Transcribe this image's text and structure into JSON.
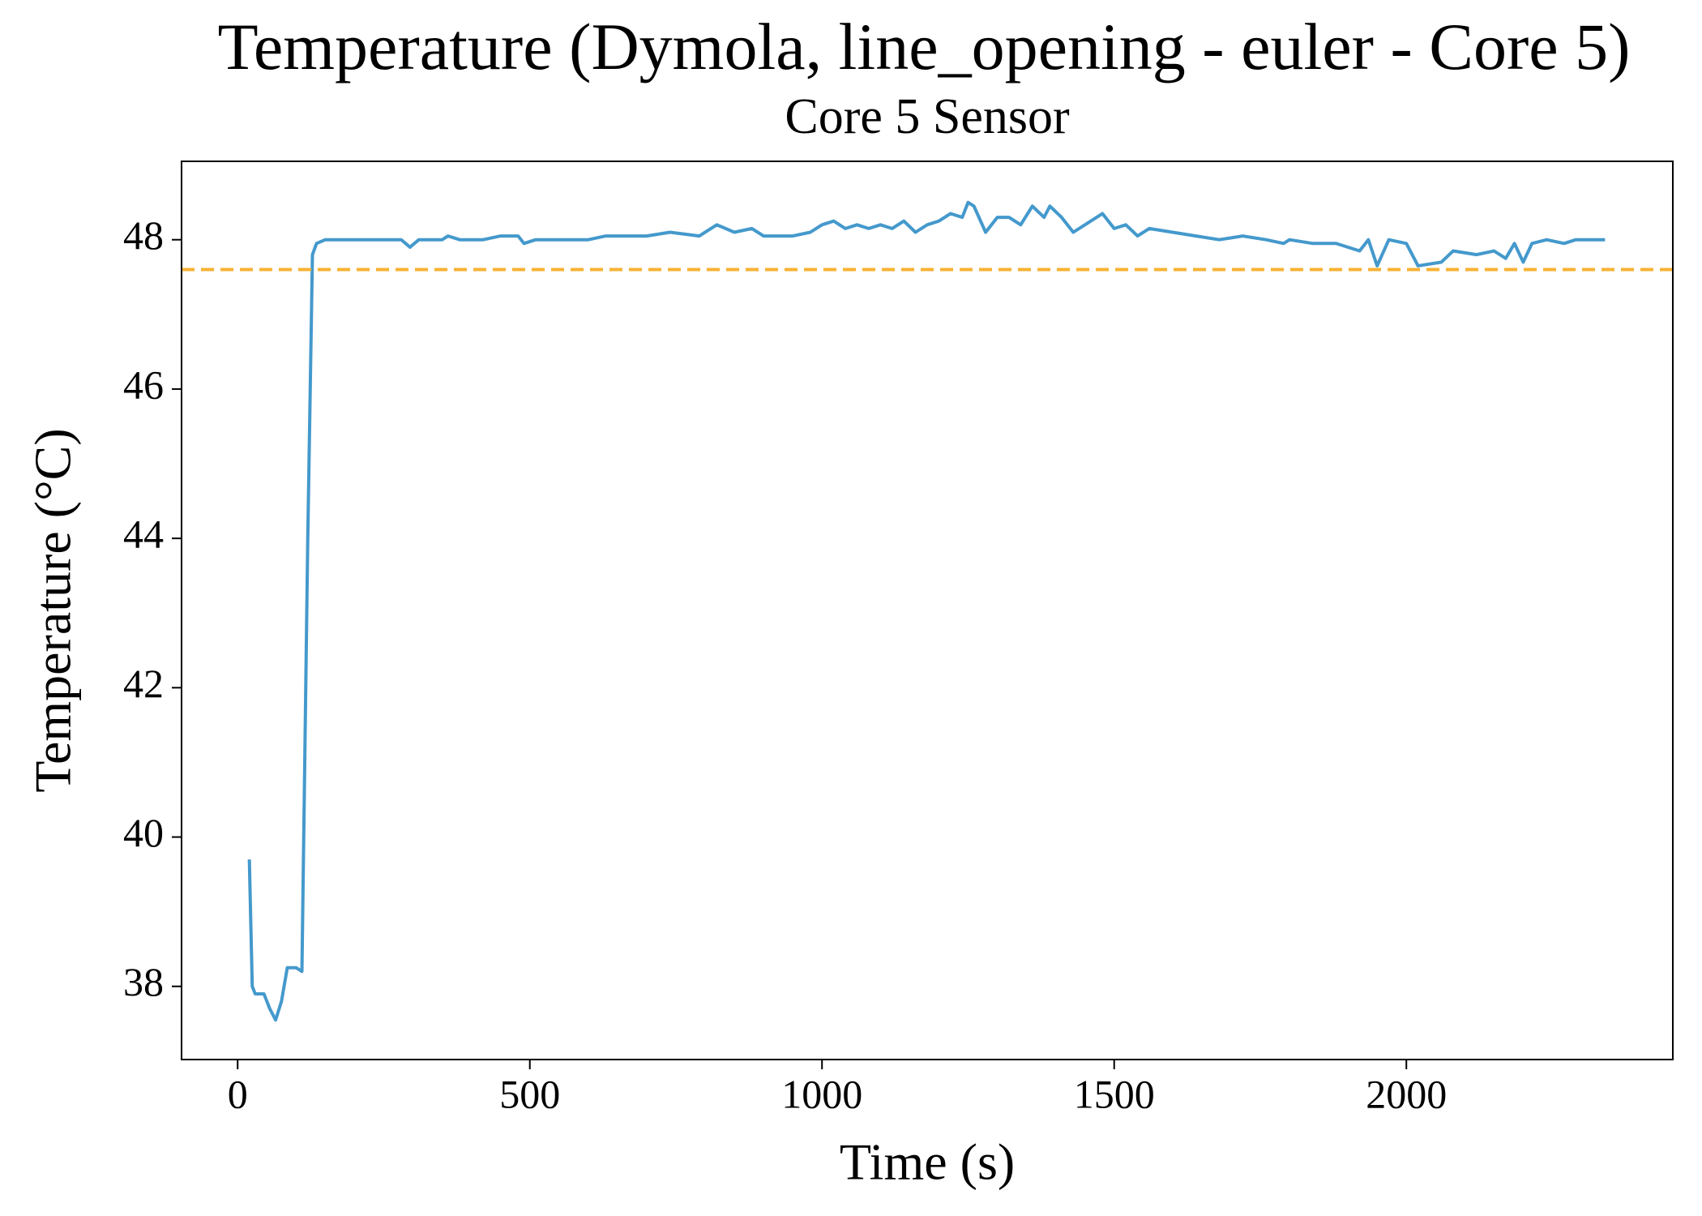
{
  "chart_data": {
    "type": "line",
    "title": "Temperature (Dymola, line_opening - euler - Core 5)",
    "subtitle": "Core 5 Sensor",
    "x_label": "Time (s)",
    "y_label": "Temperature (°C)",
    "x": [
      20,
      25,
      30,
      45,
      55,
      65,
      75,
      85,
      100,
      110,
      120,
      128,
      135,
      150,
      280,
      295,
      310,
      350,
      360,
      380,
      420,
      450,
      480,
      490,
      510,
      600,
      630,
      700,
      740,
      790,
      820,
      850,
      880,
      900,
      950,
      980,
      1000,
      1020,
      1040,
      1060,
      1080,
      1100,
      1120,
      1140,
      1160,
      1180,
      1200,
      1220,
      1240,
      1250,
      1260,
      1280,
      1300,
      1320,
      1340,
      1360,
      1380,
      1390,
      1410,
      1430,
      1460,
      1480,
      1500,
      1520,
      1540,
      1560,
      1600,
      1640,
      1680,
      1720,
      1760,
      1790,
      1800,
      1840,
      1880,
      1920,
      1935,
      1950,
      1970,
      2000,
      2020,
      2060,
      2080,
      2120,
      2150,
      2170,
      2185,
      2200,
      2215,
      2240,
      2270,
      2290,
      2340
    ],
    "values": [
      39.7,
      38.0,
      37.9,
      37.9,
      37.7,
      37.55,
      37.8,
      38.25,
      38.25,
      38.2,
      44,
      47.8,
      47.95,
      48,
      48,
      47.9,
      48,
      48,
      48.05,
      48,
      48,
      48.05,
      48.05,
      47.95,
      48,
      48,
      48.05,
      48.05,
      48.1,
      48.05,
      48.2,
      48.1,
      48.15,
      48.05,
      48.05,
      48.1,
      48.2,
      48.25,
      48.15,
      48.2,
      48.15,
      48.2,
      48.15,
      48.25,
      48.1,
      48.2,
      48.25,
      48.35,
      48.3,
      48.5,
      48.45,
      48.1,
      48.3,
      48.3,
      48.2,
      48.45,
      48.3,
      48.45,
      48.3,
      48.1,
      48.25,
      48.35,
      48.15,
      48.2,
      48.05,
      48.15,
      48.1,
      48.05,
      48,
      48.05,
      48,
      47.95,
      48,
      47.95,
      47.95,
      47.85,
      48.0,
      47.65,
      48.0,
      47.95,
      47.65,
      47.7,
      47.85,
      47.8,
      47.85,
      47.75,
      47.95,
      47.7,
      47.95,
      48,
      47.95,
      48,
      48
    ],
    "color": "#4499cc",
    "reference_line": {
      "value": 47.6,
      "color": "#f8b233",
      "style": "dashed"
    },
    "xlim": [
      -96,
      2456
    ],
    "ylim": [
      37.02,
      49.05
    ],
    "xticks": [
      0,
      500,
      1000,
      1500,
      2000
    ],
    "yticks": [
      38,
      40,
      42,
      44,
      46,
      48
    ],
    "grid": false
  }
}
